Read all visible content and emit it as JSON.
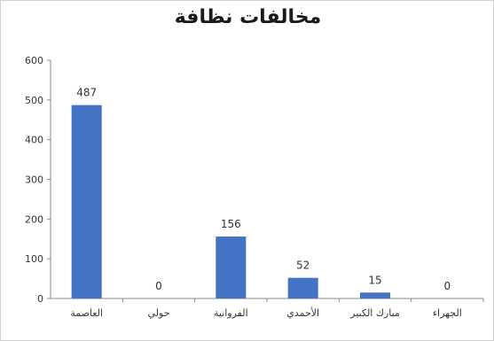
{
  "chart_data": {
    "type": "bar",
    "title": "مخالفات نظافة",
    "categories": [
      "العاصمة",
      "حولي",
      "الفروانية",
      "الأحمدي",
      "مبارك الكبير",
      "الجهراء"
    ],
    "values": [
      487,
      0,
      156,
      52,
      15,
      0
    ],
    "ylim": [
      0,
      600
    ],
    "yticks": [
      0,
      100,
      200,
      300,
      400,
      500,
      600
    ],
    "grid": false,
    "legend": "none",
    "bar_color": "#4472C4"
  }
}
